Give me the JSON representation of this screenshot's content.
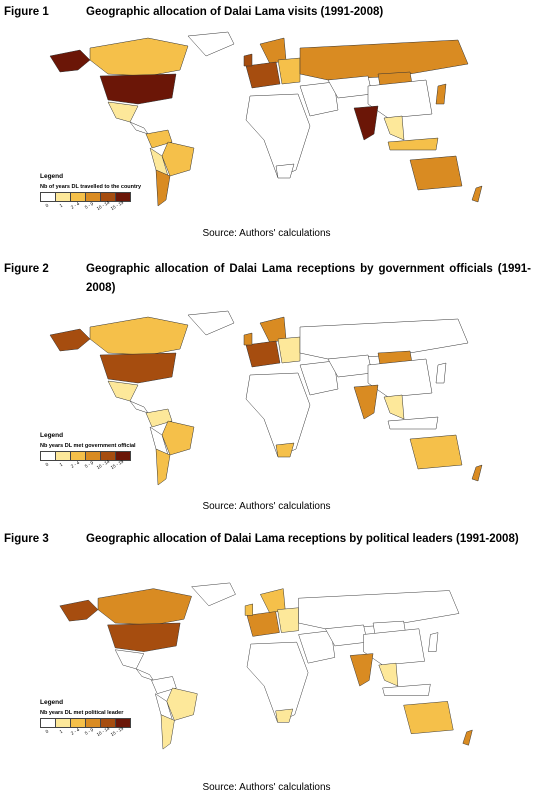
{
  "figures": [
    {
      "number": "Figure 1",
      "title": "Geographic allocation of Dalai Lama visits (1991-2008)",
      "legend_title": "Legend",
      "legend_desc": "Nb of years DL travelled to the country",
      "source": "Source: Authors' calculations"
    },
    {
      "number": "Figure 2",
      "title": "Geographic allocation of Dalai Lama receptions by government officials (1991-2008)",
      "legend_title": "Legend",
      "legend_desc": "Nb years DL met government official",
      "source": "Source: Authors' calculations"
    },
    {
      "number": "Figure 3",
      "title": "Geographic allocation of Dalai Lama receptions by political leaders (1991-2008)",
      "legend_title": "Legend",
      "legend_desc": "Nb years DL met political leader",
      "source": "Source: Authors' calculations"
    }
  ],
  "legend_classes": [
    "0",
    "1",
    "2 - 4",
    "5 - 9",
    "10 - 14",
    "15 - 19"
  ],
  "legend_colors": [
    "#ffffff",
    "#fde89a",
    "#f5c04a",
    "#d98b22",
    "#a64d0f",
    "#6b1607"
  ]
}
